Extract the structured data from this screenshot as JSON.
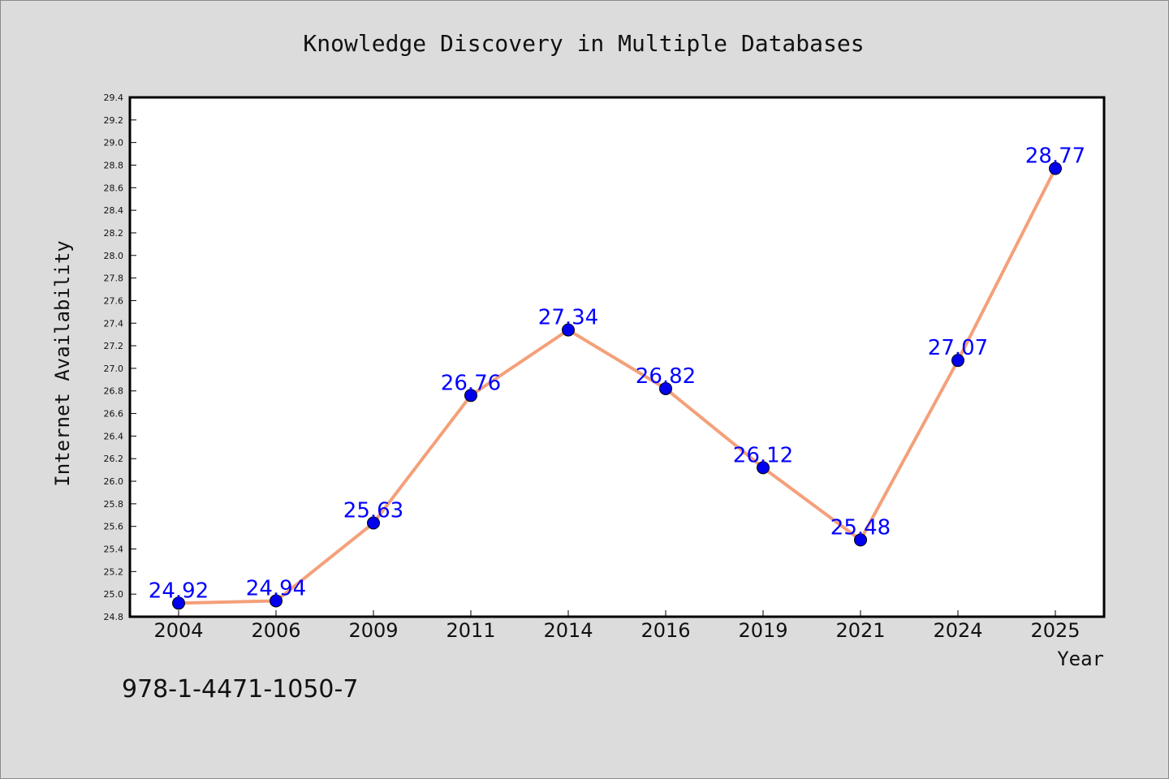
{
  "chart_data": {
    "type": "line",
    "title": "Knowledge Discovery in Multiple Databases",
    "xlabel": "Year",
    "ylabel": "Internet Availability",
    "categories": [
      "2004",
      "2006",
      "2009",
      "2011",
      "2014",
      "2016",
      "2019",
      "2021",
      "2024",
      "2025"
    ],
    "series": [
      {
        "values": [
          24.92,
          24.94,
          25.63,
          26.76,
          27.34,
          26.82,
          26.12,
          25.48,
          27.07,
          28.77
        ]
      }
    ],
    "data_labels": [
      "24.92",
      "24.94",
      "25.63",
      "26.76",
      "27.34",
      "26.82",
      "26.12",
      "25.48",
      "27.07",
      "28.77"
    ],
    "ylim": [
      24.8,
      29.4
    ],
    "yticks": [
      "24.8",
      "25.0",
      "25.2",
      "25.4",
      "25.6",
      "25.8",
      "26.0",
      "26.2",
      "26.4",
      "26.6",
      "26.8",
      "27.0",
      "27.2",
      "27.4",
      "27.6",
      "27.8",
      "28.0",
      "28.2",
      "28.4",
      "28.6",
      "28.8",
      "29.0",
      "29.2",
      "29.4"
    ],
    "grid": false,
    "legend": "none",
    "colors": {
      "line": "#f4a07a",
      "marker": "#0000ee",
      "marker_edge": "#000000",
      "label": "#0000ff",
      "plot_background": "#ffffff",
      "figure_background": "#dcdcdc"
    }
  },
  "footer": {
    "code": "978-1-4471-1050-7"
  }
}
